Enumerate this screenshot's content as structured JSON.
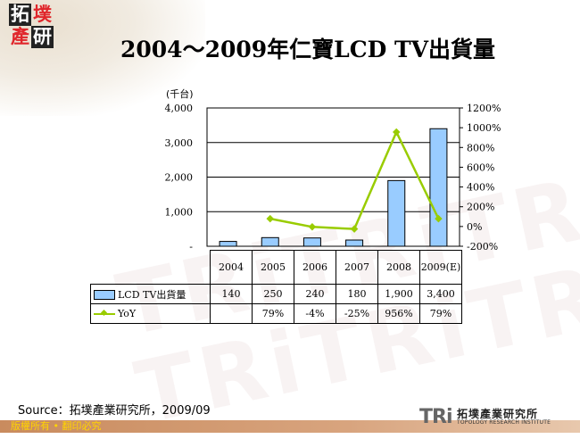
{
  "header": {
    "logo_chars": [
      "拓",
      "墣",
      "產",
      "研"
    ],
    "title": "2004～2009年仁寶LCD TV出貨量"
  },
  "chart_data": {
    "type": "bar",
    "title": "2004～2009年仁寶LCD TV出貨量",
    "categories": [
      "2004",
      "2005",
      "2006",
      "2007",
      "2008",
      "2009(E)"
    ],
    "series": [
      {
        "name": "LCD TV出貨量",
        "type": "bar",
        "axis": "left",
        "color": "#99ccff",
        "values": [
          140,
          250,
          240,
          180,
          1900,
          3400
        ]
      },
      {
        "name": "YoY",
        "type": "line",
        "axis": "right",
        "color": "#99cc00",
        "values": [
          null,
          79,
          -4,
          -25,
          956,
          79
        ],
        "labels": [
          "",
          "79%",
          "-4%",
          "-25%",
          "956%",
          "79%"
        ]
      }
    ],
    "ylabel": "(千台)",
    "ylim": [
      0,
      4000
    ],
    "yticks": [
      "-",
      "1,000",
      "2,000",
      "3,000",
      "4,000"
    ],
    "y2lim": [
      -200,
      1200
    ],
    "y2ticks": [
      "-200%",
      "0%",
      "200%",
      "400%",
      "600%",
      "800%",
      "1000%",
      "1200%"
    ],
    "grid": true,
    "legend_position": "data-table"
  },
  "table": {
    "bar_label": "LCD TV出貨量",
    "line_label": "YoY",
    "bar_values": [
      "140",
      "250",
      "240",
      "180",
      "1,900",
      "3,400"
    ],
    "line_values": [
      "",
      "79%",
      "-4%",
      "-25%",
      "956%",
      "79%"
    ]
  },
  "footer": {
    "source": "Source：拓墣產業研究所，2009/09",
    "copyright": "版權所有 • 翻印必究",
    "brand_mark": "TRi",
    "brand_cn": "拓墣產業研究所",
    "brand_en": "TOPOLOGY RESEARCH INSTITUTE"
  },
  "colors": {
    "bar": "#99ccff",
    "line": "#99cc00",
    "footer_bar": "#d09a70",
    "copyright_text": "#ffd400",
    "logo_red": "#e0262b"
  }
}
